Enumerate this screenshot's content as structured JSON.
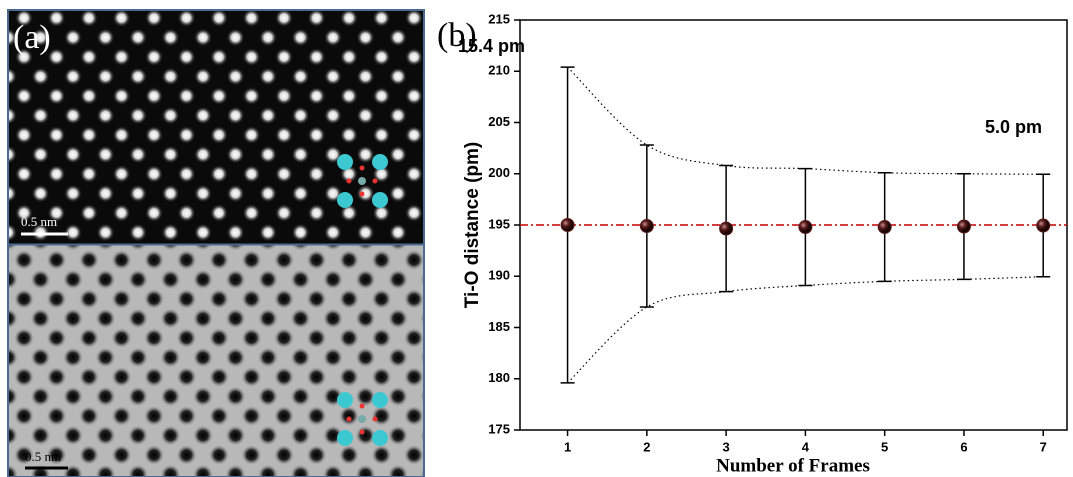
{
  "panel_a": {
    "label": "(a)",
    "scale_bars": [
      "0.5 nm",
      "0.5 nm"
    ]
  },
  "chart_data": {
    "type": "errorbar",
    "panel_label": "(b)",
    "x": [
      1,
      2,
      3,
      4,
      5,
      6,
      7
    ],
    "values": [
      195.0,
      194.9,
      194.65,
      194.8,
      194.8,
      194.85,
      194.95
    ],
    "errors": [
      15.4,
      7.9,
      6.15,
      5.7,
      5.3,
      5.15,
      5.0
    ],
    "color": "#5a1a1a",
    "reference_line": 195,
    "reference_color": "#c00000",
    "xlim": [
      0.4,
      7.3
    ],
    "xticks": [
      1,
      2,
      3,
      4,
      5,
      6,
      7
    ],
    "ylim": [
      175,
      215
    ],
    "yticks": [
      175,
      180,
      185,
      190,
      195,
      200,
      205,
      210,
      215
    ],
    "x_label": "Number of Frames",
    "y_label": "Ti-O distance (pm)",
    "annotations": [
      "15.4 pm",
      "5.0 pm"
    ]
  }
}
